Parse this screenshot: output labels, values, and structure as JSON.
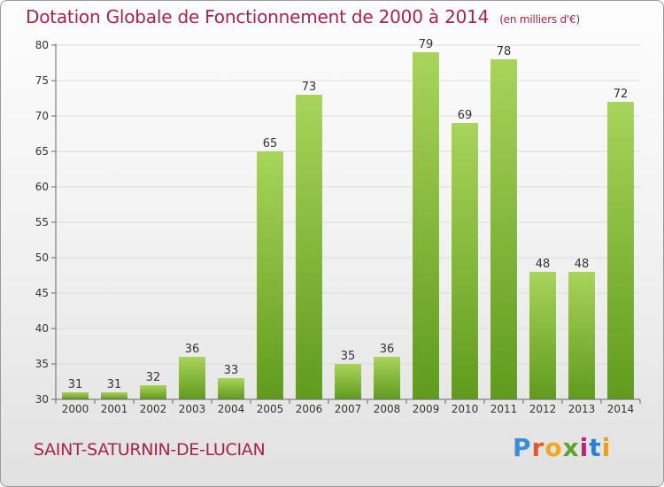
{
  "title": "Dotation Globale de Fonctionnement de 2000 à 2014",
  "subtitle": "(en milliers d'€)",
  "commune": "SAINT-SATURNIN-DE-LUCIAN",
  "logo": {
    "text": "Proxiti"
  },
  "colors": {
    "title": "#a8244a",
    "bar_top": "#a8d45a",
    "bar_bottom": "#5f9b1c",
    "grid": "#dddddd"
  },
  "chart_data": {
    "type": "bar",
    "title": "Dotation Globale de Fonctionnement de 2000 à 2014",
    "subtitle": "(en milliers d'€)",
    "xlabel": "",
    "ylabel": "",
    "categories": [
      "2000",
      "2001",
      "2002",
      "2003",
      "2004",
      "2005",
      "2006",
      "2007",
      "2008",
      "2009",
      "2010",
      "2011",
      "2012",
      "2013",
      "2014"
    ],
    "values": [
      31,
      31,
      32,
      36,
      33,
      65,
      73,
      35,
      36,
      79,
      69,
      78,
      48,
      48,
      72
    ],
    "ylim": [
      30,
      80
    ],
    "yticks": [
      30,
      35,
      40,
      45,
      50,
      55,
      60,
      65,
      70,
      75,
      80
    ],
    "grid": true,
    "legend": "none"
  }
}
